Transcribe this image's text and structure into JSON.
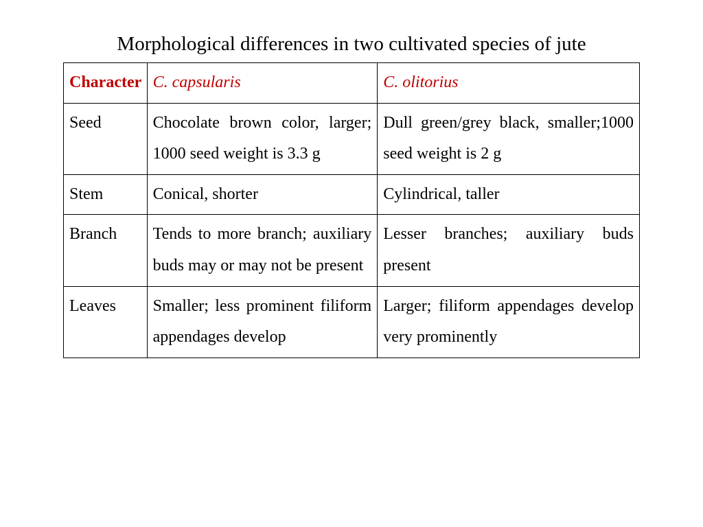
{
  "title": "Morphological differences in two cultivated species of jute",
  "table": {
    "columns": [
      {
        "label": "Character"
      },
      {
        "label": "C. capsularis"
      },
      {
        "label": "C. olitorius"
      }
    ],
    "rows": [
      {
        "character": "Seed",
        "capsularis": "Chocolate brown color, larger; 1000 seed weight is 3.3 g",
        "olitorius": "Dull green/grey black, smaller;1000 seed weight is 2 g"
      },
      {
        "character": "Stem",
        "capsularis": "Conical, shorter",
        "olitorius": "Cylindrical, taller"
      },
      {
        "character": "Branch",
        "capsularis": "Tends to more branch; auxiliary buds may or may not be present",
        "olitorius": "Lesser branches; auxiliary buds present"
      },
      {
        "character": "Leaves",
        "capsularis": "Smaller; less prominent filiform appendages develop",
        "olitorius": "Larger; filiform appendages develop very prominently"
      }
    ],
    "header_color": "#c00000",
    "border_color": "#000000",
    "text_color": "#000000",
    "background_color": "#ffffff",
    "title_fontsize": 29,
    "cell_fontsize": 24,
    "font_family": "Times New Roman",
    "column_widths_pct": [
      14.5,
      40,
      45.5
    ]
  }
}
